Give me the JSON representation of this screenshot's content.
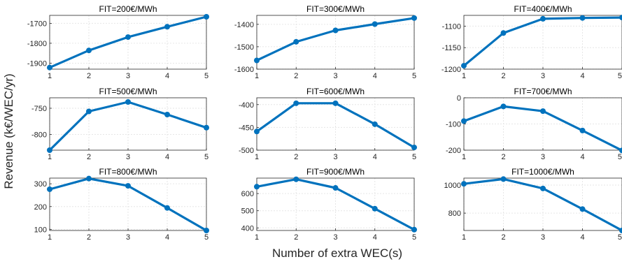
{
  "chart_data": [
    {
      "type": "line",
      "title": "FIT=200€/MWh",
      "x": [
        1,
        2,
        3,
        4,
        5
      ],
      "xlim": [
        1,
        5
      ],
      "xticks": [
        "1",
        "2",
        "3",
        "4",
        "5"
      ],
      "values": [
        -1922,
        -1836,
        -1769,
        -1717,
        -1667
      ],
      "ylim": [
        -1930,
        -1660
      ],
      "yticks": [
        -1900,
        -1800,
        -1700
      ],
      "color": "#0072BD",
      "grid": true
    },
    {
      "type": "line",
      "title": "FIT=300€/MWh",
      "x": [
        1,
        2,
        3,
        4,
        5
      ],
      "xlim": [
        1,
        5
      ],
      "xticks": [
        "1",
        "2",
        "3",
        "4",
        "5"
      ],
      "values": [
        -1561,
        -1478,
        -1427,
        -1399,
        -1372
      ],
      "ylim": [
        -1600,
        -1360
      ],
      "yticks": [
        -1600,
        -1500,
        -1400
      ],
      "color": "#0072BD",
      "grid": true
    },
    {
      "type": "line",
      "title": "FIT=400€/MWh",
      "x": [
        1,
        2,
        3,
        4,
        5
      ],
      "xlim": [
        1,
        5
      ],
      "xticks": [
        "1",
        "2",
        "3",
        "4",
        "5"
      ],
      "values": [
        -1192,
        -1116,
        -1083,
        -1081,
        -1080
      ],
      "ylim": [
        -1200,
        -1075
      ],
      "yticks": [
        -1200,
        -1150,
        -1100
      ],
      "color": "#0072BD",
      "grid": true
    },
    {
      "type": "line",
      "title": "FIT=500€/MWh",
      "x": [
        1,
        2,
        3,
        4,
        5
      ],
      "xlim": [
        1,
        5
      ],
      "xticks": [
        "1",
        "2",
        "3",
        "4",
        "5"
      ],
      "values": [
        -830,
        -756,
        -738,
        -762,
        -787
      ],
      "ylim": [
        -830,
        -730
      ],
      "yticks": [
        -800,
        -750
      ],
      "color": "#0072BD",
      "grid": true
    },
    {
      "type": "line",
      "title": "FIT=600€/MWh",
      "x": [
        1,
        2,
        3,
        4,
        5
      ],
      "xlim": [
        1,
        5
      ],
      "xticks": [
        "1",
        "2",
        "3",
        "4",
        "5"
      ],
      "values": [
        -459,
        -397,
        -397,
        -443,
        -494
      ],
      "ylim": [
        -500,
        -385
      ],
      "yticks": [
        -500,
        -450,
        -400
      ],
      "color": "#0072BD",
      "grid": true
    },
    {
      "type": "line",
      "title": "FIT=700€/MWh",
      "x": [
        1,
        2,
        3,
        4,
        5
      ],
      "xlim": [
        1,
        5
      ],
      "xticks": [
        "1",
        "2",
        "3",
        "4",
        "5"
      ],
      "values": [
        -89,
        -33,
        -51,
        -125,
        -201
      ],
      "ylim": [
        -200,
        0
      ],
      "yticks": [
        -200,
        -100,
        0
      ],
      "color": "#0072BD",
      "grid": true
    },
    {
      "type": "line",
      "title": "FIT=800€/MWh",
      "x": [
        1,
        2,
        3,
        4,
        5
      ],
      "xlim": [
        1,
        5
      ],
      "xticks": [
        "1",
        "2",
        "3",
        "4",
        "5"
      ],
      "values": [
        276,
        323,
        291,
        194,
        95
      ],
      "ylim": [
        95,
        325
      ],
      "yticks": [
        100,
        200,
        300
      ],
      "color": "#0072BD",
      "grid": true
    },
    {
      "type": "line",
      "title": "FIT=900€/MWh",
      "x": [
        1,
        2,
        3,
        4,
        5
      ],
      "xlim": [
        1,
        5
      ],
      "xticks": [
        "1",
        "2",
        "3",
        "4",
        "5"
      ],
      "values": [
        640,
        683,
        633,
        512,
        390
      ],
      "ylim": [
        385,
        690
      ],
      "yticks": [
        400,
        500,
        600
      ],
      "color": "#0072BD",
      "grid": true
    },
    {
      "type": "line",
      "title": "FIT=1000€/MWh",
      "x": [
        1,
        2,
        3,
        4,
        5
      ],
      "xlim": [
        1,
        5
      ],
      "xticks": [
        "1",
        "2",
        "3",
        "4",
        "5"
      ],
      "values": [
        1009,
        1043,
        976,
        829,
        676
      ],
      "ylim": [
        676,
        1050
      ],
      "yticks": [
        800,
        1000
      ],
      "color": "#0072BD",
      "grid": true
    }
  ],
  "figure": {
    "xlabel": "Number of extra WEC(s)",
    "ylabel": "Revenue (k€/WEC/yr)"
  }
}
